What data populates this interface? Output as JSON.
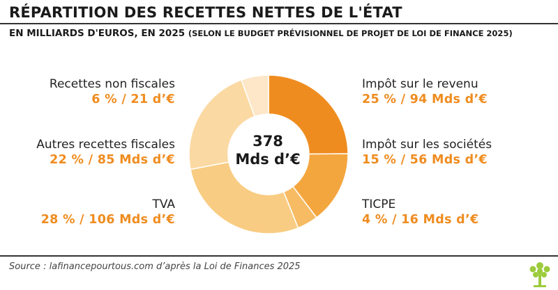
{
  "header": {
    "title": "RÉPARTITION DES RECETTES NETTES DE L'ÉTAT",
    "subtitle": "EN MILLIARDS D'EUROS, EN 2025",
    "subtitle_note": "(SELON LE BUDGET PRÉVISIONNEL DE PROJET DE LOI DE FINANCE 2025)"
  },
  "center": {
    "total": "378",
    "unit": "Mds d’€"
  },
  "labels": {
    "ir": {
      "name": "Impôt sur le revenu",
      "value": "25 % / 94 Mds d’€"
    },
    "is": {
      "name": "Impôt sur les sociétés",
      "value": "15 % / 56 Mds d’€"
    },
    "ticpe": {
      "name": "TICPE",
      "value": "4 % / 16 Mds d’€"
    },
    "tva": {
      "name": "TVA",
      "value": "28 % / 106 Mds d’€"
    },
    "arf": {
      "name": "Autres recettes fiscales",
      "value": "22 % / 85 Mds d’€"
    },
    "rnf": {
      "name": "Recettes non fiscales",
      "value": "6 % / 21 d’€"
    }
  },
  "footer": {
    "source": "Source : lafinancepourtous.com d’après la Loi de Finances 2025"
  },
  "chart_data": {
    "type": "pie",
    "title": "RÉPARTITION DES RECETTES NETTES DE L'ÉTAT",
    "unit": "Mds d’€",
    "total": 378,
    "categories": [
      "Impôt sur le revenu",
      "Impôt sur les sociétés",
      "TICPE",
      "TVA",
      "Autres recettes fiscales",
      "Recettes non fiscales"
    ],
    "values": [
      94,
      56,
      16,
      106,
      85,
      21
    ],
    "percent": [
      25,
      15,
      4,
      28,
      22,
      6
    ],
    "colors": [
      "#ef8c1f",
      "#f4a63e",
      "#f6bb63",
      "#f8cc82",
      "#fbd9a2",
      "#fde7c8"
    ],
    "style": "donut"
  }
}
